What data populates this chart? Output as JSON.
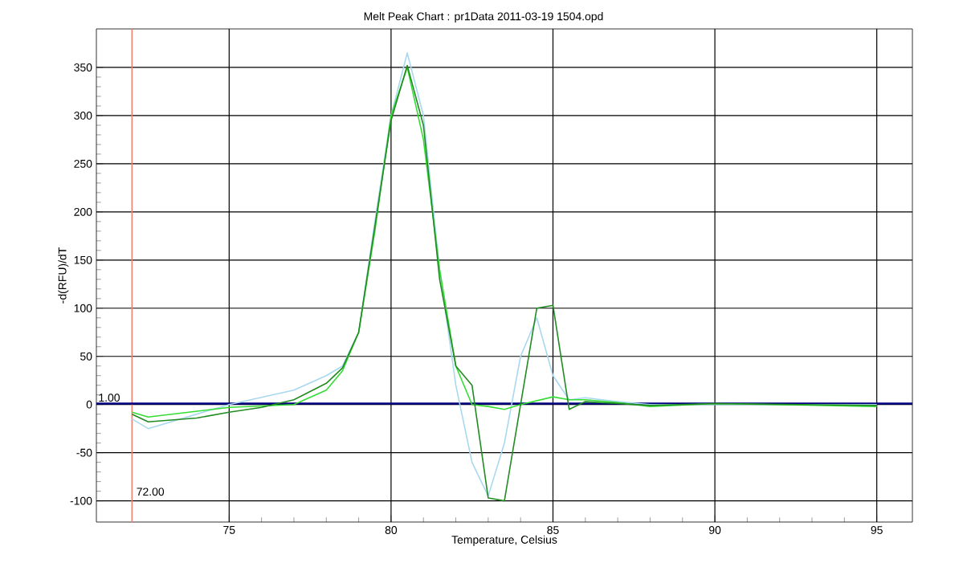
{
  "chart_data": {
    "type": "line",
    "title": "Melt Peak Chart : pr1Data 2011-03-19 1504.opd",
    "xlabel": "Temperature, Celsius",
    "ylabel": "-d(RFU)/dT",
    "xlim": [
      70.9,
      96.1
    ],
    "ylim": [
      -122,
      390
    ],
    "xticks": [
      75,
      80,
      85,
      90,
      95
    ],
    "yticks": [
      -100,
      -50,
      0,
      50,
      100,
      150,
      200,
      250,
      300,
      350
    ],
    "grid": true,
    "ref_lines": [
      {
        "axis": "x",
        "value": 72,
        "label": "72.00",
        "color": "#f08070"
      },
      {
        "axis": "y",
        "value": 1,
        "label": "1.00",
        "color": "#000080"
      }
    ],
    "series": [
      {
        "color": "#a8d8f0",
        "x": [
          72,
          72.5,
          75,
          77,
          78,
          78.5,
          79,
          79.5,
          80,
          80.5,
          81,
          81.5,
          82,
          82.5,
          83,
          83.5,
          84,
          84.5,
          85,
          85.5,
          86,
          87,
          88,
          90,
          95
        ],
        "values": [
          -15,
          -25,
          0,
          15,
          30,
          40,
          75,
          190,
          300,
          365,
          300,
          140,
          20,
          -60,
          -95,
          -40,
          50,
          90,
          30,
          5,
          7,
          3,
          0,
          null,
          0
        ]
      },
      {
        "color": "#33dd33",
        "x": [
          72,
          72.5,
          75,
          77,
          78,
          78.5,
          79,
          79.5,
          80,
          80.5,
          81,
          81.5,
          82,
          82.5,
          83,
          83.5,
          84,
          85,
          85.5,
          86,
          87,
          88,
          90,
          95
        ],
        "values": [
          -8,
          -13,
          -3,
          0,
          15,
          35,
          75,
          180,
          300,
          350,
          275,
          140,
          40,
          0,
          -2,
          -5,
          0,
          8,
          5,
          5,
          2,
          -2,
          1,
          -2
        ]
      },
      {
        "color": "#228b22",
        "x": [
          72,
          72.5,
          74,
          75,
          76,
          77,
          78,
          78.5,
          79,
          79.5,
          80,
          80.5,
          81,
          81.5,
          82,
          82.5,
          83,
          83.5,
          84.5,
          85,
          85.5,
          86,
          88,
          90,
          95
        ],
        "values": [
          -10,
          -18,
          -14,
          -8,
          -3,
          5,
          22,
          38,
          75,
          185,
          295,
          352,
          290,
          130,
          40,
          20,
          -97,
          -100,
          100,
          103,
          -5,
          3,
          -1,
          1,
          -1
        ]
      }
    ]
  }
}
